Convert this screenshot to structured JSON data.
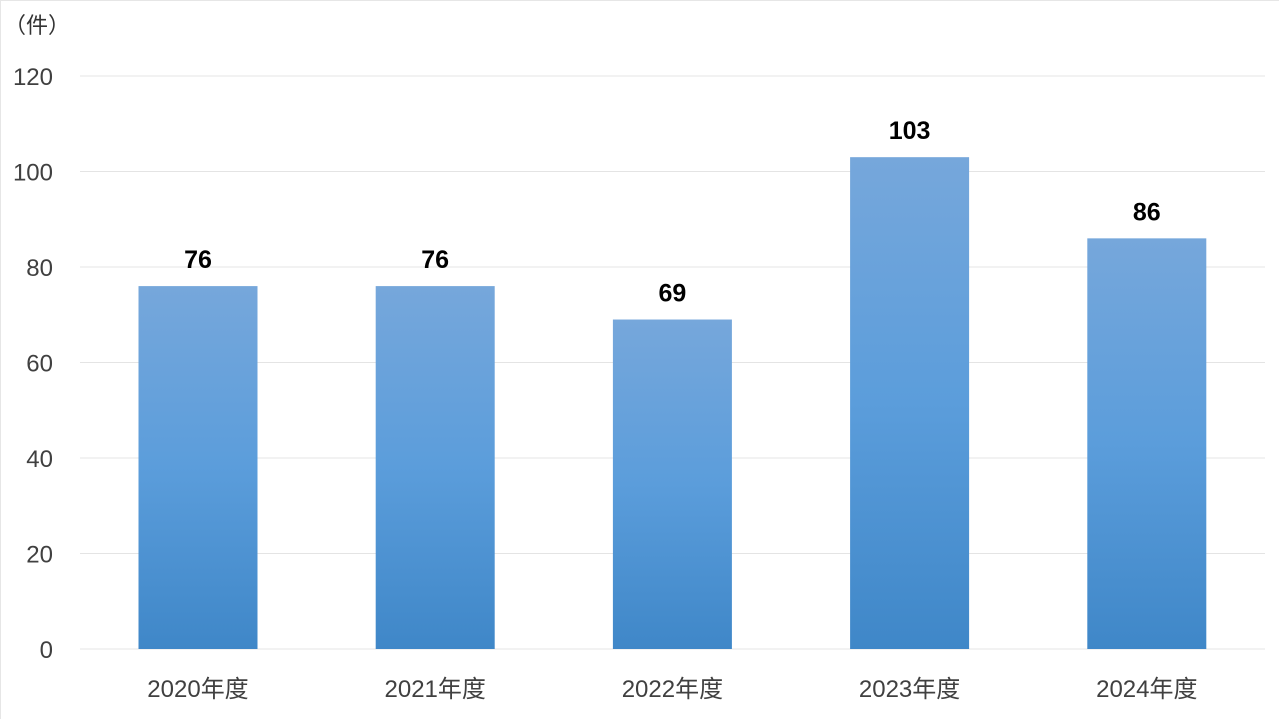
{
  "chart_data": {
    "type": "bar",
    "unit_label": "（件）",
    "categories": [
      "2020年度",
      "2021年度",
      "2022年度",
      "2023年度",
      "2024年度"
    ],
    "series": [
      {
        "values": [
          76,
          76,
          69,
          103,
          86
        ]
      }
    ],
    "ylim": [
      0,
      120
    ],
    "yticks": [
      0,
      20,
      40,
      60,
      80,
      100,
      120
    ],
    "grid": true,
    "legend": "none",
    "data_labels": true,
    "colors": {
      "bar_top": "#76a7db",
      "bar_bottom": "#3f87c8",
      "grid": "#e4e4e4",
      "axis_text": "#404040",
      "label_text": "#000000"
    }
  }
}
